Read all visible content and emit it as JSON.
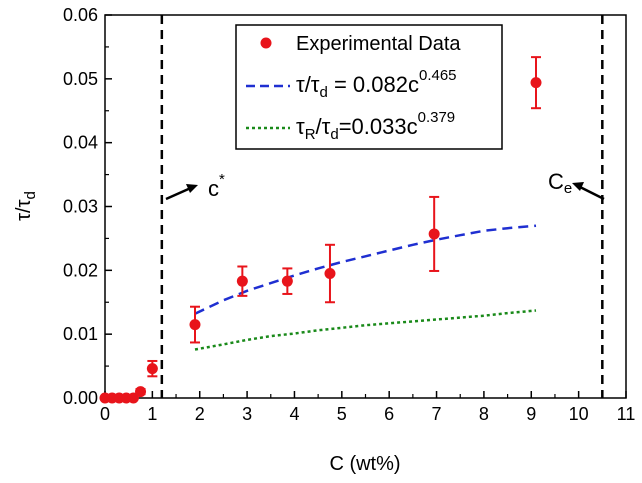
{
  "chart_data": {
    "type": "scatter",
    "xlabel": "C (wt%)",
    "ylabel": {
      "main": "τ/τ",
      "sub": "d"
    },
    "xlim": [
      0,
      11
    ],
    "ylim": [
      0,
      0.06
    ],
    "x_ticks": [
      "0",
      "1",
      "2",
      "3",
      "4",
      "5",
      "6",
      "7",
      "8",
      "9",
      "10",
      "11"
    ],
    "y_ticks": [
      "0.00",
      "0.01",
      "0.02",
      "0.03",
      "0.04",
      "0.05",
      "0.06"
    ],
    "grid": false,
    "legend_position": "top-center",
    "colors": {
      "data": "#e8141b",
      "fit_tau": "#1f2fd1",
      "fit_tau_r": "#1a8a1a"
    },
    "series": [
      {
        "name": "Experimental Data",
        "kind": "scatter-errorbar",
        "x": [
          0.0,
          0.15,
          0.3,
          0.45,
          0.6,
          0.75,
          1.0,
          1.9,
          2.9,
          3.85,
          4.75,
          6.95,
          9.1
        ],
        "y": [
          0.0,
          0.0,
          0.0,
          0.0,
          0.0,
          0.001,
          0.0046,
          0.0115,
          0.0183,
          0.0183,
          0.0195,
          0.0257,
          0.0494
        ],
        "err": [
          0,
          0,
          0,
          0,
          0,
          0.0004,
          0.0012,
          0.0028,
          0.0023,
          0.002,
          0.0045,
          0.0058,
          0.004
        ]
      },
      {
        "name": "τ/τd = 0.082c^0.465",
        "kind": "line-dashed",
        "x": [
          1.9,
          2.5,
          3,
          3.5,
          4,
          4.5,
          5,
          5.5,
          6,
          6.5,
          7,
          7.5,
          8,
          8.5,
          9.1
        ],
        "y": [
          0.0132,
          0.0153,
          0.0168,
          0.018,
          0.0192,
          0.0203,
          0.0213,
          0.0222,
          0.0231,
          0.024,
          0.0248,
          0.0255,
          0.0262,
          0.0266,
          0.027
        ]
      },
      {
        "name": "τR/τd = 0.033c^0.379",
        "kind": "line-dotted",
        "x": [
          1.9,
          2.5,
          3,
          3.5,
          4,
          4.5,
          5,
          5.5,
          6,
          6.5,
          7,
          7.5,
          8,
          8.5,
          9.1
        ],
        "y": [
          0.0076,
          0.0084,
          0.0091,
          0.0097,
          0.0101,
          0.0106,
          0.011,
          0.0114,
          0.0117,
          0.012,
          0.0123,
          0.0126,
          0.0129,
          0.0133,
          0.0137
        ]
      }
    ],
    "vlines": [
      {
        "x": 1.2,
        "style": "dashed",
        "label": "c*"
      },
      {
        "x": 10.5,
        "style": "dashed",
        "label": "Ce"
      }
    ],
    "legend": {
      "item1": "Experimental Data",
      "eq1": {
        "lhs": "τ/τ",
        "lhs_sub": "d",
        "rhs": " = 0.082c",
        "exp": "0.465"
      },
      "eq2": {
        "lhs": "τ",
        "lhs_sub": "R",
        "mid": "/τ",
        "mid_sub": "d",
        "rhs": "=0.033c",
        "exp": "0.379"
      }
    },
    "annotations": {
      "cstar": {
        "base": "c",
        "sup": "*"
      },
      "ce": {
        "base": "C",
        "sub": "e"
      }
    }
  }
}
